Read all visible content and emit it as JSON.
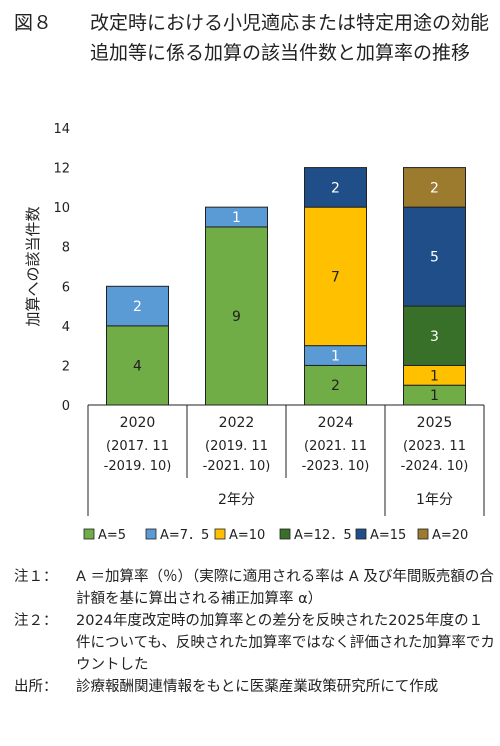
{
  "title": {
    "figure_no": "図８",
    "text": "改定時における小児適応または特定用途の効能追加等に係る加算の該当件数と加算率の推移"
  },
  "chart_data": {
    "type": "bar",
    "stacked": true,
    "categories": [
      "2020",
      "2022",
      "2024",
      "2025"
    ],
    "category_sublabels": [
      "(2017. 11\n-2019. 10)",
      "(2019. 11\n-2021. 10)",
      "(2021. 11\n-2023. 10)",
      "(2023. 11\n-2024. 10)"
    ],
    "groups": [
      {
        "label": "2年分",
        "categories": [
          "2020",
          "2022",
          "2024"
        ]
      },
      {
        "label": "1年分",
        "categories": [
          "2025"
        ]
      }
    ],
    "series": [
      {
        "name": "A=5",
        "color": "#70ad47",
        "values": [
          4,
          9,
          2,
          1
        ]
      },
      {
        "name": "A=7．5",
        "color": "#5b9bd5",
        "values": [
          2,
          1,
          1,
          0
        ]
      },
      {
        "name": "A=10",
        "color": "#ffc000",
        "values": [
          0,
          0,
          7,
          1
        ]
      },
      {
        "name": "A=12．5",
        "color": "#38702a",
        "values": [
          0,
          0,
          0,
          3
        ]
      },
      {
        "name": "A=15",
        "color": "#1f4e89",
        "values": [
          0,
          0,
          2,
          5
        ]
      },
      {
        "name": "A=20",
        "color": "#9c7a2e",
        "values": [
          0,
          0,
          0,
          2
        ]
      }
    ],
    "ylabel": "加算への該当件数",
    "ylim": [
      0,
      14
    ],
    "yticks": [
      0,
      2,
      4,
      6,
      8,
      10,
      12,
      14
    ],
    "legend_position": "bottom",
    "grid": false
  },
  "notes": [
    {
      "label": "注１：",
      "text": "A ＝加算率（％）（実際に適用される率は A 及び年間販売額の合計額を基に算出される補正加算率 α）"
    },
    {
      "label": "注２：",
      "text": "2024年度改定時の加算率との差分を反映された2025年度の１件についても、反映された加算率ではなく評価された加算率でカウントした"
    },
    {
      "label": "出所：",
      "text": "診療報酬関連情報をもとに医薬産業政策研究所にて作成"
    }
  ]
}
